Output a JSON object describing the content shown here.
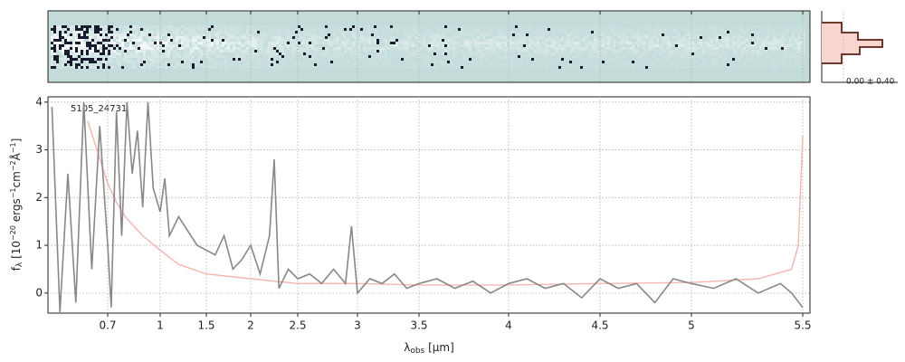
{
  "chart_data": {
    "type": "line",
    "annotation": "5105_24731",
    "hist_label": "0.00 ± 0.40",
    "x_label_parts": [
      "λ",
      "obs",
      " [",
      "μ",
      "m]"
    ],
    "y_label_parts": [
      "f",
      "λ",
      " [10",
      "−20",
      " ergs",
      "−1",
      "cm",
      "−2",
      "Å",
      "−1",
      "]"
    ],
    "xlim": [
      0.55,
      5.52
    ],
    "xticks": [
      0.7,
      1.0,
      1.5,
      2.0,
      2.5,
      3.0,
      3.5,
      4.0,
      4.5,
      5.0,
      5.5
    ],
    "ylim": [
      -0.42,
      4.11
    ],
    "yticks": [
      0,
      1,
      2,
      3,
      4
    ],
    "grid": true,
    "series": [
      {
        "color": "#888888",
        "x": [
          0.56,
          0.58,
          0.6,
          0.62,
          0.64,
          0.66,
          0.68,
          0.7,
          0.72,
          0.75,
          0.78,
          0.81,
          0.84,
          0.87,
          0.9,
          0.93,
          0.96,
          1.0,
          1.05,
          1.1,
          1.15,
          1.2,
          1.3,
          1.4,
          1.5,
          1.6,
          1.7,
          1.8,
          1.9,
          2.0,
          2.1,
          2.2,
          2.25,
          2.3,
          2.4,
          2.5,
          2.6,
          2.7,
          2.8,
          2.9,
          2.95,
          3.0,
          3.1,
          3.2,
          3.3,
          3.4,
          3.5,
          3.6,
          3.7,
          3.8,
          3.9,
          4.0,
          4.1,
          4.2,
          4.3,
          4.4,
          4.5,
          4.6,
          4.7,
          4.8,
          4.9,
          5.0,
          5.1,
          5.2,
          5.3,
          5.4,
          5.45,
          5.5
        ],
        "values": [
          3.9,
          -0.4,
          2.5,
          -0.2,
          4.0,
          0.5,
          3.5,
          1.0,
          -0.3,
          3.8,
          1.2,
          4.0,
          2.5,
          3.4,
          1.8,
          4.0,
          2.2,
          1.7,
          2.4,
          1.2,
          1.4,
          1.6,
          1.3,
          1.0,
          0.9,
          0.8,
          1.2,
          0.5,
          0.7,
          1.0,
          0.4,
          1.2,
          2.8,
          0.1,
          0.5,
          0.3,
          0.4,
          0.2,
          0.5,
          0.2,
          1.4,
          0.0,
          0.3,
          0.2,
          0.4,
          0.1,
          0.2,
          0.3,
          0.1,
          0.25,
          0.0,
          0.2,
          0.3,
          0.1,
          0.2,
          -0.1,
          0.3,
          0.1,
          0.2,
          -0.2,
          0.3,
          0.2,
          0.1,
          0.3,
          0.0,
          0.2,
          0.0,
          -0.3
        ]
      },
      {
        "color": "#f5b5b0",
        "x": [
          0.65,
          0.7,
          0.75,
          0.8,
          0.9,
          1.0,
          1.2,
          1.5,
          2.0,
          2.5,
          3.0,
          3.5,
          4.0,
          4.5,
          5.0,
          5.3,
          5.45,
          5.48,
          5.5
        ],
        "values": [
          3.6,
          2.3,
          1.9,
          1.6,
          1.2,
          0.9,
          0.6,
          0.4,
          0.3,
          0.2,
          0.2,
          0.17,
          0.17,
          0.2,
          0.22,
          0.3,
          0.5,
          1.0,
          3.3
        ]
      }
    ]
  }
}
